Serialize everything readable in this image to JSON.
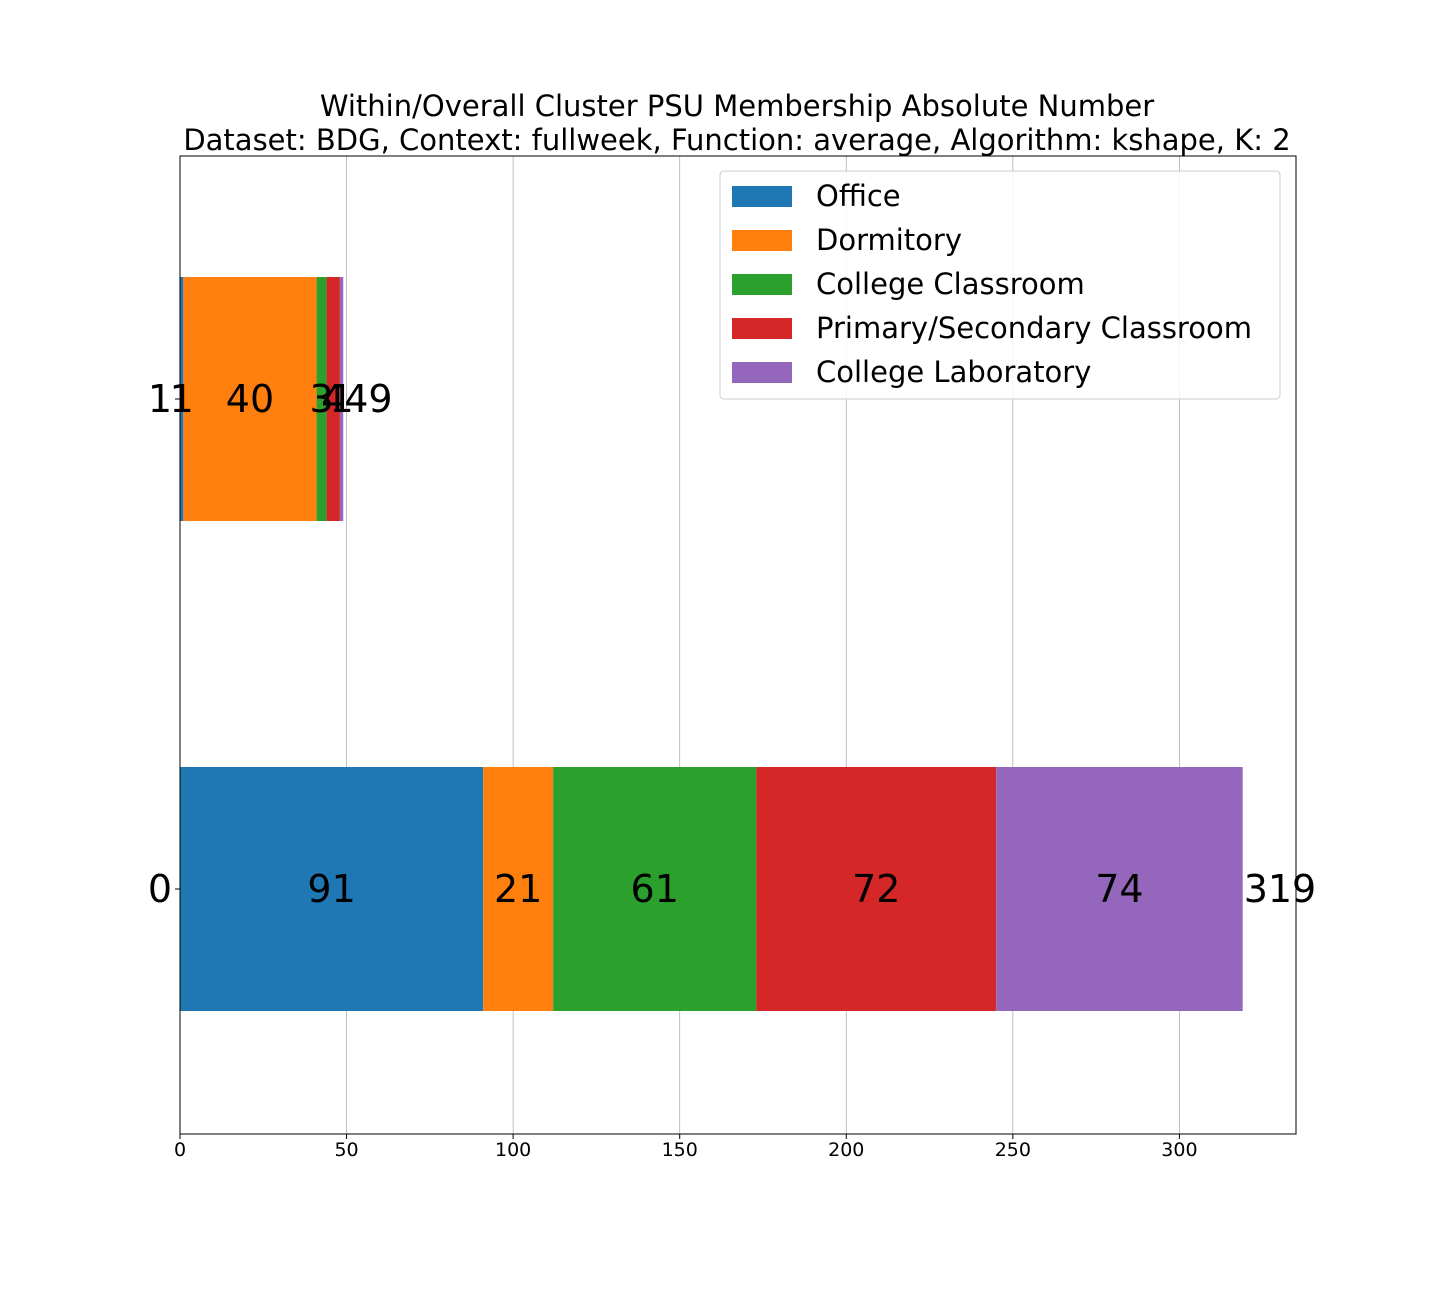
{
  "chart_data": {
    "type": "bar",
    "orientation": "horizontal",
    "stacked": true,
    "title": "Within/Overall Cluster PSU Membership Absolute Number",
    "subtitle": "Dataset: BDG, Context: fullweek, Function: average, Algorithm: kshape, K: 2",
    "xlabel": "",
    "ylabel": "",
    "xlim": [
      0,
      335
    ],
    "x_ticks": [
      "0",
      "50",
      "100",
      "150",
      "200",
      "250",
      "300"
    ],
    "categories": [
      "0",
      "1"
    ],
    "series": [
      {
        "name": "Office",
        "color": "#1f77b4",
        "values": [
          91,
          1
        ]
      },
      {
        "name": "Dormitory",
        "color": "#ff7f0e",
        "values": [
          21,
          40
        ]
      },
      {
        "name": "College Classroom",
        "color": "#2ca02c",
        "values": [
          61,
          3
        ]
      },
      {
        "name": "Primary/Secondary Classroom",
        "color": "#d62728",
        "values": [
          72,
          4
        ]
      },
      {
        "name": "College Laboratory",
        "color": "#9467bd",
        "values": [
          74,
          1
        ]
      }
    ],
    "totals": [
      319,
      49
    ],
    "grid": "vertical",
    "legend_position": "top-right"
  }
}
